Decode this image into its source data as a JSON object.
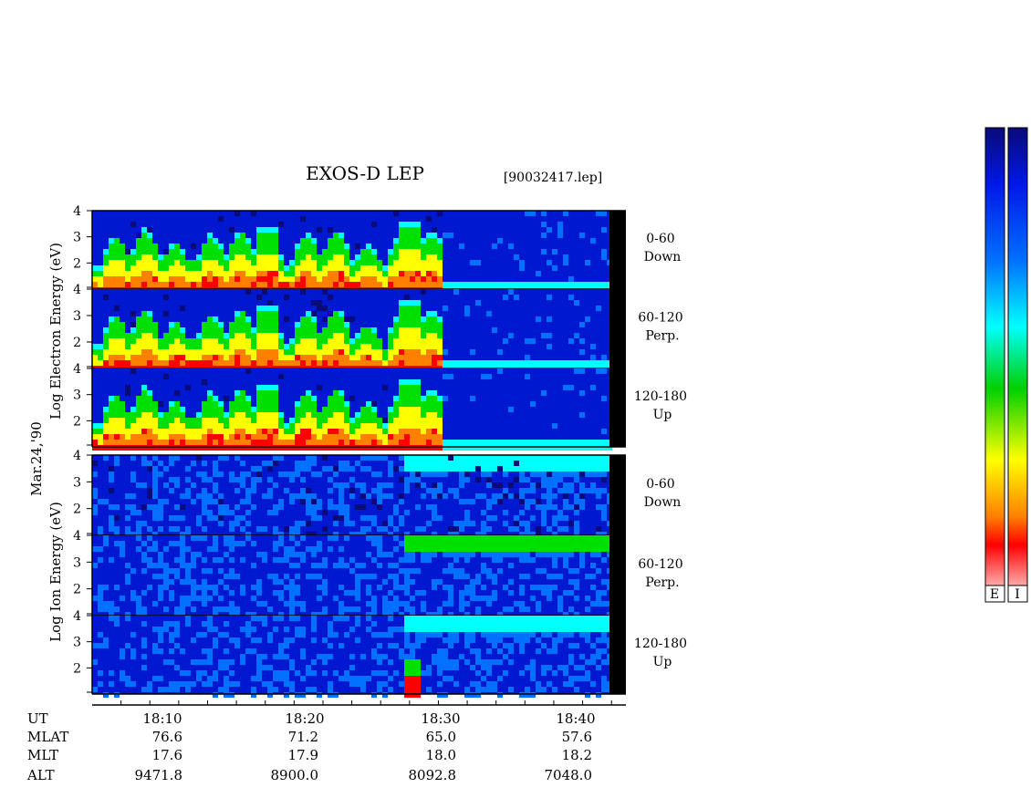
{
  "title": "EXOS-D LEP",
  "file_label": "[90032417.lep]",
  "date_label": "Mar.24,'90",
  "electron_axis_label": "Log  Electron  Energy  (eV)",
  "ion_axis_label": "Log  Ion  Energy  (eV)",
  "footer": {
    "row_labels": [
      "UT",
      "MLAT",
      "MLT",
      "ALT"
    ],
    "columns": [
      {
        "ut": "18:10",
        "mlat": "76.6",
        "mlt": "17.6",
        "alt": "9471.8"
      },
      {
        "ut": "18:20",
        "mlat": "71.2",
        "mlt": "17.9",
        "alt": "8900.0"
      },
      {
        "ut": "18:30",
        "mlat": "65.0",
        "mlt": "18.0",
        "alt": "8092.8"
      },
      {
        "ut": "18:40",
        "mlat": "57.6",
        "mlt": "18.2",
        "alt": "7048.0"
      }
    ]
  },
  "colorbars": [
    {
      "label": "E"
    },
    {
      "label": "I"
    }
  ],
  "chart_data": {
    "type": "heatmap",
    "title": "EXOS-D LEP",
    "subtitle": "[90032417.lep]",
    "x_axis": {
      "quantity": "UT",
      "range": [
        "18:05",
        "18:42"
      ],
      "major_ticks": [
        "18:10",
        "18:20",
        "18:30",
        "18:40"
      ]
    },
    "y_axis": {
      "label": "Log Energy (eV)",
      "range": [
        1,
        4
      ],
      "ticks": [
        2,
        3,
        4
      ]
    },
    "panels": [
      {
        "species": "Electron",
        "pitch_angle": "0-60",
        "direction": "Down"
      },
      {
        "species": "Electron",
        "pitch_angle": "60-120",
        "direction": "Perp."
      },
      {
        "species": "Electron",
        "pitch_angle": "120-180",
        "direction": "Up"
      },
      {
        "species": "Ion",
        "pitch_angle": "0-60",
        "direction": "Down"
      },
      {
        "species": "Ion",
        "pitch_angle": "60-120",
        "direction": "Perp."
      },
      {
        "species": "Ion",
        "pitch_angle": "120-180",
        "direction": "Up"
      }
    ],
    "colormap": [
      "#0a0a78",
      "#0018e8",
      "#0070ff",
      "#00ffff",
      "#00e000",
      "#ffff00",
      "#ff8000",
      "#ff0000",
      "#ffd8d8"
    ]
  }
}
